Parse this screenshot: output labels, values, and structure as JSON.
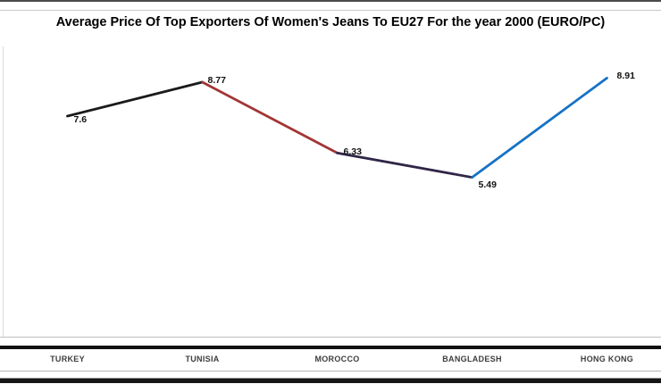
{
  "chart_data": {
    "type": "line",
    "title": "Average Price Of Top Exporters Of Women's Jeans To EU27 For the year 2000 (EURO/PC)",
    "categories": [
      "TURKEY",
      "TUNISIA",
      "MOROCCO",
      "BANGLADESH",
      "HONG KONG"
    ],
    "values": [
      7.6,
      8.77,
      6.33,
      5.49,
      8.91
    ],
    "data_labels": [
      "7.6",
      "8.77",
      "6.33",
      "5.49",
      "8.91"
    ],
    "unit": "EURO/PC",
    "ylim": [
      0,
      10
    ],
    "grid": false,
    "legend": false,
    "segment_colors": [
      "#1a1a1a",
      "#a33535",
      "#302647",
      "#1572c6"
    ],
    "axis_line_color": "#c0c0c0",
    "label_color": "#111111",
    "category_label_color": "#3d3d3d"
  }
}
